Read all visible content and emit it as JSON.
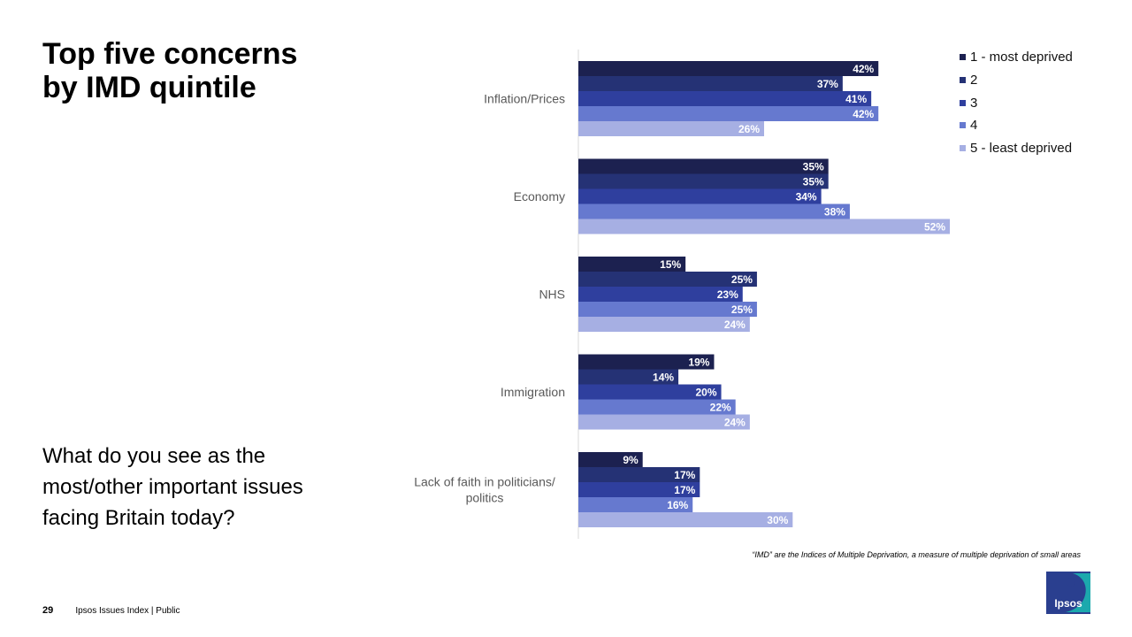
{
  "title": {
    "line1": "Top five concerns",
    "line2": "by IMD quintile"
  },
  "question": {
    "line1": "What do you see as the",
    "line2": "most/other important issues",
    "line3": "facing Britain today?"
  },
  "footnote": "“IMD” are the Indices of Multiple Deprivation, a measure of multiple deprivation of small areas",
  "footer": {
    "page_number": "29",
    "label": "Ipsos Issues Index | Public"
  },
  "logo": {
    "text": "Ipsos"
  },
  "colors": {
    "q1": "#1c2150",
    "q2": "#253275",
    "q3": "#2f3f9e",
    "q4": "#6679cf",
    "q5": "#a6afe3",
    "axis": "#d9d9d9",
    "logo_blue": "#2a3f8f",
    "logo_teal": "#1bb5b0"
  },
  "chart_data": {
    "type": "bar",
    "orientation": "horizontal",
    "title": "",
    "xlabel": "",
    "ylabel": "",
    "xlim": [
      0,
      52
    ],
    "legend_position": "top-right",
    "categories": [
      "Inflation/Prices",
      "Economy",
      "NHS",
      "Immigration",
      "Lack of faith in politicians/ politics"
    ],
    "category_lines": [
      [
        "Inflation/Prices"
      ],
      [
        "Economy"
      ],
      [
        "NHS"
      ],
      [
        "Immigration"
      ],
      [
        "Lack of faith in politicians/",
        "politics"
      ]
    ],
    "series": [
      {
        "name": "1 - most deprived",
        "values": [
          42,
          35,
          15,
          19,
          9
        ],
        "labels": [
          "42%",
          "35%",
          "15%",
          "19%",
          "9%"
        ],
        "color": "#1c2150"
      },
      {
        "name": "2",
        "values": [
          37,
          35,
          25,
          14,
          17
        ],
        "labels": [
          "37%",
          "35%",
          "25%",
          "14%",
          "17%"
        ],
        "color": "#253275"
      },
      {
        "name": "3",
        "values": [
          41,
          34,
          23,
          20,
          17
        ],
        "labels": [
          "41%",
          "34%",
          "23%",
          "20%",
          "17%"
        ],
        "color": "#2f3f9e"
      },
      {
        "name": "4",
        "values": [
          42,
          38,
          25,
          22,
          16
        ],
        "labels": [
          "42%",
          "38%",
          "25%",
          "22%",
          "16%"
        ],
        "color": "#6679cf"
      },
      {
        "name": "5 - least deprived",
        "values": [
          26,
          52,
          24,
          24,
          30
        ],
        "labels": [
          "26%",
          "52%",
          "24%",
          "24%",
          "30%"
        ],
        "color": "#a6afe3"
      }
    ]
  }
}
